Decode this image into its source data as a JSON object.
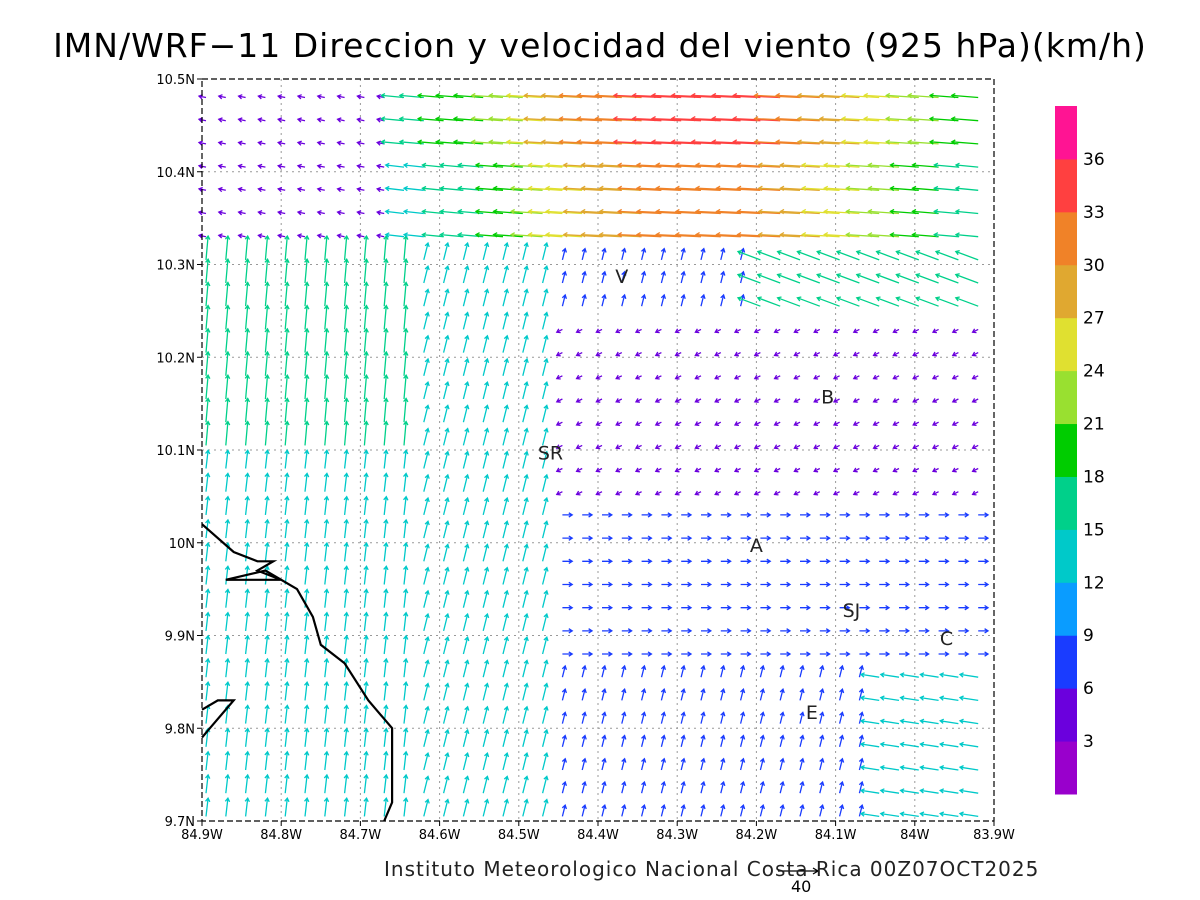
{
  "title": "IMN/WRF−11 Direccion y velocidad del viento (925 hPa)(km/h)",
  "credit": "Instituto Meteorologico Nacional Costa Rica 00Z07OCT2025",
  "scale_vector": {
    "label": "40",
    "value": 40
  },
  "map": {
    "lon_range": [
      -84.9,
      -83.9
    ],
    "lat_range": [
      9.7,
      10.5
    ],
    "x_ticks": [
      {
        "value": -84.9,
        "label": "84.9W"
      },
      {
        "value": -84.8,
        "label": "84.8W"
      },
      {
        "value": -84.7,
        "label": "84.7W"
      },
      {
        "value": -84.6,
        "label": "84.6W"
      },
      {
        "value": -84.5,
        "label": "84.5W"
      },
      {
        "value": -84.4,
        "label": "84.4W"
      },
      {
        "value": -84.3,
        "label": "84.3W"
      },
      {
        "value": -84.2,
        "label": "84.2W"
      },
      {
        "value": -84.1,
        "label": "84.1W"
      },
      {
        "value": -84.0,
        "label": "84W"
      },
      {
        "value": -83.9,
        "label": "83.9W"
      }
    ],
    "y_ticks": [
      {
        "value": 9.7,
        "label": "9.7N"
      },
      {
        "value": 9.8,
        "label": "9.8N"
      },
      {
        "value": 9.9,
        "label": "9.9N"
      },
      {
        "value": 10.0,
        "label": "10N"
      },
      {
        "value": 10.1,
        "label": "10.1N"
      },
      {
        "value": 10.2,
        "label": "10.2N"
      },
      {
        "value": 10.3,
        "label": "10.3N"
      },
      {
        "value": 10.4,
        "label": "10.4N"
      },
      {
        "value": 10.5,
        "label": "10.5N"
      }
    ],
    "grid": true,
    "places": [
      {
        "label": "V",
        "lon": -84.37,
        "lat": 10.28
      },
      {
        "label": "B",
        "lon": -84.11,
        "lat": 10.15
      },
      {
        "label": "SR",
        "lon": -84.46,
        "lat": 10.09
      },
      {
        "label": "A",
        "lon": -84.2,
        "lat": 9.99
      },
      {
        "label": "SJ",
        "lon": -84.08,
        "lat": 9.92
      },
      {
        "label": "C",
        "lon": -83.96,
        "lat": 9.89
      },
      {
        "label": "E",
        "lon": -84.13,
        "lat": 9.81
      }
    ],
    "coastline": [
      [
        -84.9,
        10.02
      ],
      [
        -84.86,
        9.99
      ],
      [
        -84.83,
        9.98
      ],
      [
        -84.81,
        9.98
      ],
      [
        -84.83,
        9.97
      ],
      [
        -84.8,
        9.96
      ],
      [
        -84.87,
        9.96
      ],
      [
        -84.82,
        9.97
      ],
      [
        -84.78,
        9.95
      ],
      [
        -84.76,
        9.92
      ],
      [
        -84.75,
        9.89
      ],
      [
        -84.72,
        9.87
      ],
      [
        -84.69,
        9.83
      ],
      [
        -84.66,
        9.8
      ],
      [
        -84.66,
        9.72
      ],
      [
        -84.67,
        9.7
      ]
    ],
    "coastline_2": [
      [
        -84.9,
        9.82
      ],
      [
        -84.88,
        9.83
      ],
      [
        -84.86,
        9.83
      ],
      [
        -84.89,
        9.8
      ],
      [
        -84.9,
        9.79
      ]
    ]
  },
  "colorbar": {
    "labels": [
      "3",
      "6",
      "9",
      "12",
      "15",
      "18",
      "21",
      "24",
      "27",
      "30",
      "33",
      "36"
    ],
    "colors": [
      "#9900cc",
      "#6b00dd",
      "#1a3cff",
      "#0a9cff",
      "#00c9c9",
      "#00d08a",
      "#00cc00",
      "#99e030",
      "#e0e030",
      "#e0a830",
      "#f08228",
      "#ff4040",
      "#ff1493"
    ]
  }
}
